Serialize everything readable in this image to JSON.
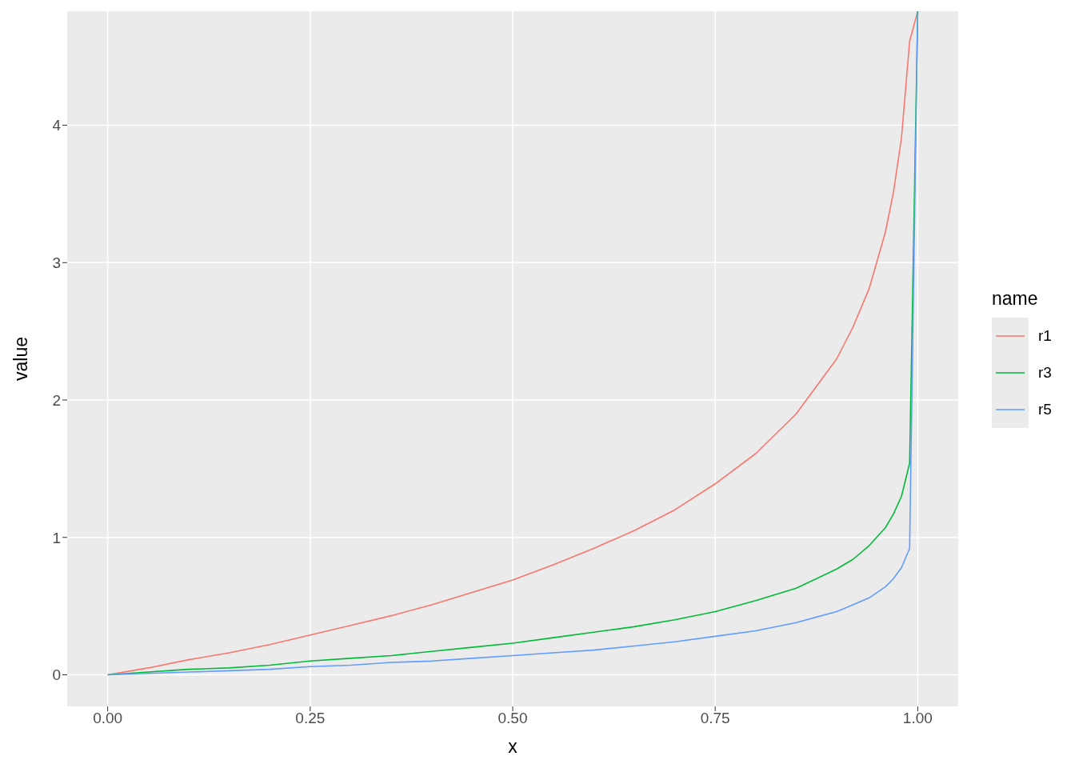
{
  "chart_data": {
    "type": "line",
    "xlabel": "x",
    "ylabel": "value",
    "legend_title": "name",
    "x": [
      0,
      0.05,
      0.1,
      0.15,
      0.2,
      0.25,
      0.3,
      0.35,
      0.4,
      0.45,
      0.5,
      0.55,
      0.6,
      0.65,
      0.7,
      0.75,
      0.8,
      0.85,
      0.9,
      0.92,
      0.94,
      0.96,
      0.97,
      0.98,
      0.99,
      1
    ],
    "series": [
      {
        "name": "r1",
        "color": "#f8766d",
        "values": [
          0,
          0.05,
          0.11,
          0.16,
          0.22,
          0.29,
          0.36,
          0.43,
          0.51,
          0.6,
          0.69,
          0.8,
          0.92,
          1.05,
          1.2,
          1.39,
          1.61,
          1.9,
          2.3,
          2.53,
          2.81,
          3.22,
          3.51,
          3.91,
          4.61,
          4.83
        ]
      },
      {
        "name": "r3",
        "color": "#00ba38",
        "values": [
          0,
          0.02,
          0.04,
          0.05,
          0.07,
          0.1,
          0.12,
          0.14,
          0.17,
          0.2,
          0.23,
          0.27,
          0.31,
          0.35,
          0.4,
          0.46,
          0.54,
          0.63,
          0.77,
          0.84,
          0.94,
          1.07,
          1.17,
          1.3,
          1.54,
          4.83
        ]
      },
      {
        "name": "r5",
        "color": "#619cff",
        "values": [
          0,
          0.01,
          0.02,
          0.03,
          0.04,
          0.06,
          0.07,
          0.09,
          0.1,
          0.12,
          0.14,
          0.16,
          0.18,
          0.21,
          0.24,
          0.28,
          0.32,
          0.38,
          0.46,
          0.51,
          0.56,
          0.64,
          0.7,
          0.78,
          0.92,
          4.83
        ]
      }
    ],
    "xlim": [
      -0.05,
      1.05
    ],
    "xticks": [
      {
        "value": 0,
        "label": "0.00"
      },
      0.25,
      {
        "value": 0.5,
        "label": "0.50"
      },
      0.75,
      {
        "value": 1,
        "label": "1.00"
      }
    ],
    "ylim": [
      -0.23,
      4.83
    ],
    "yticks": [
      0,
      1,
      2,
      3,
      4
    ],
    "grid": true,
    "legend": "right",
    "marker": "none",
    "line_style": "solid"
  }
}
